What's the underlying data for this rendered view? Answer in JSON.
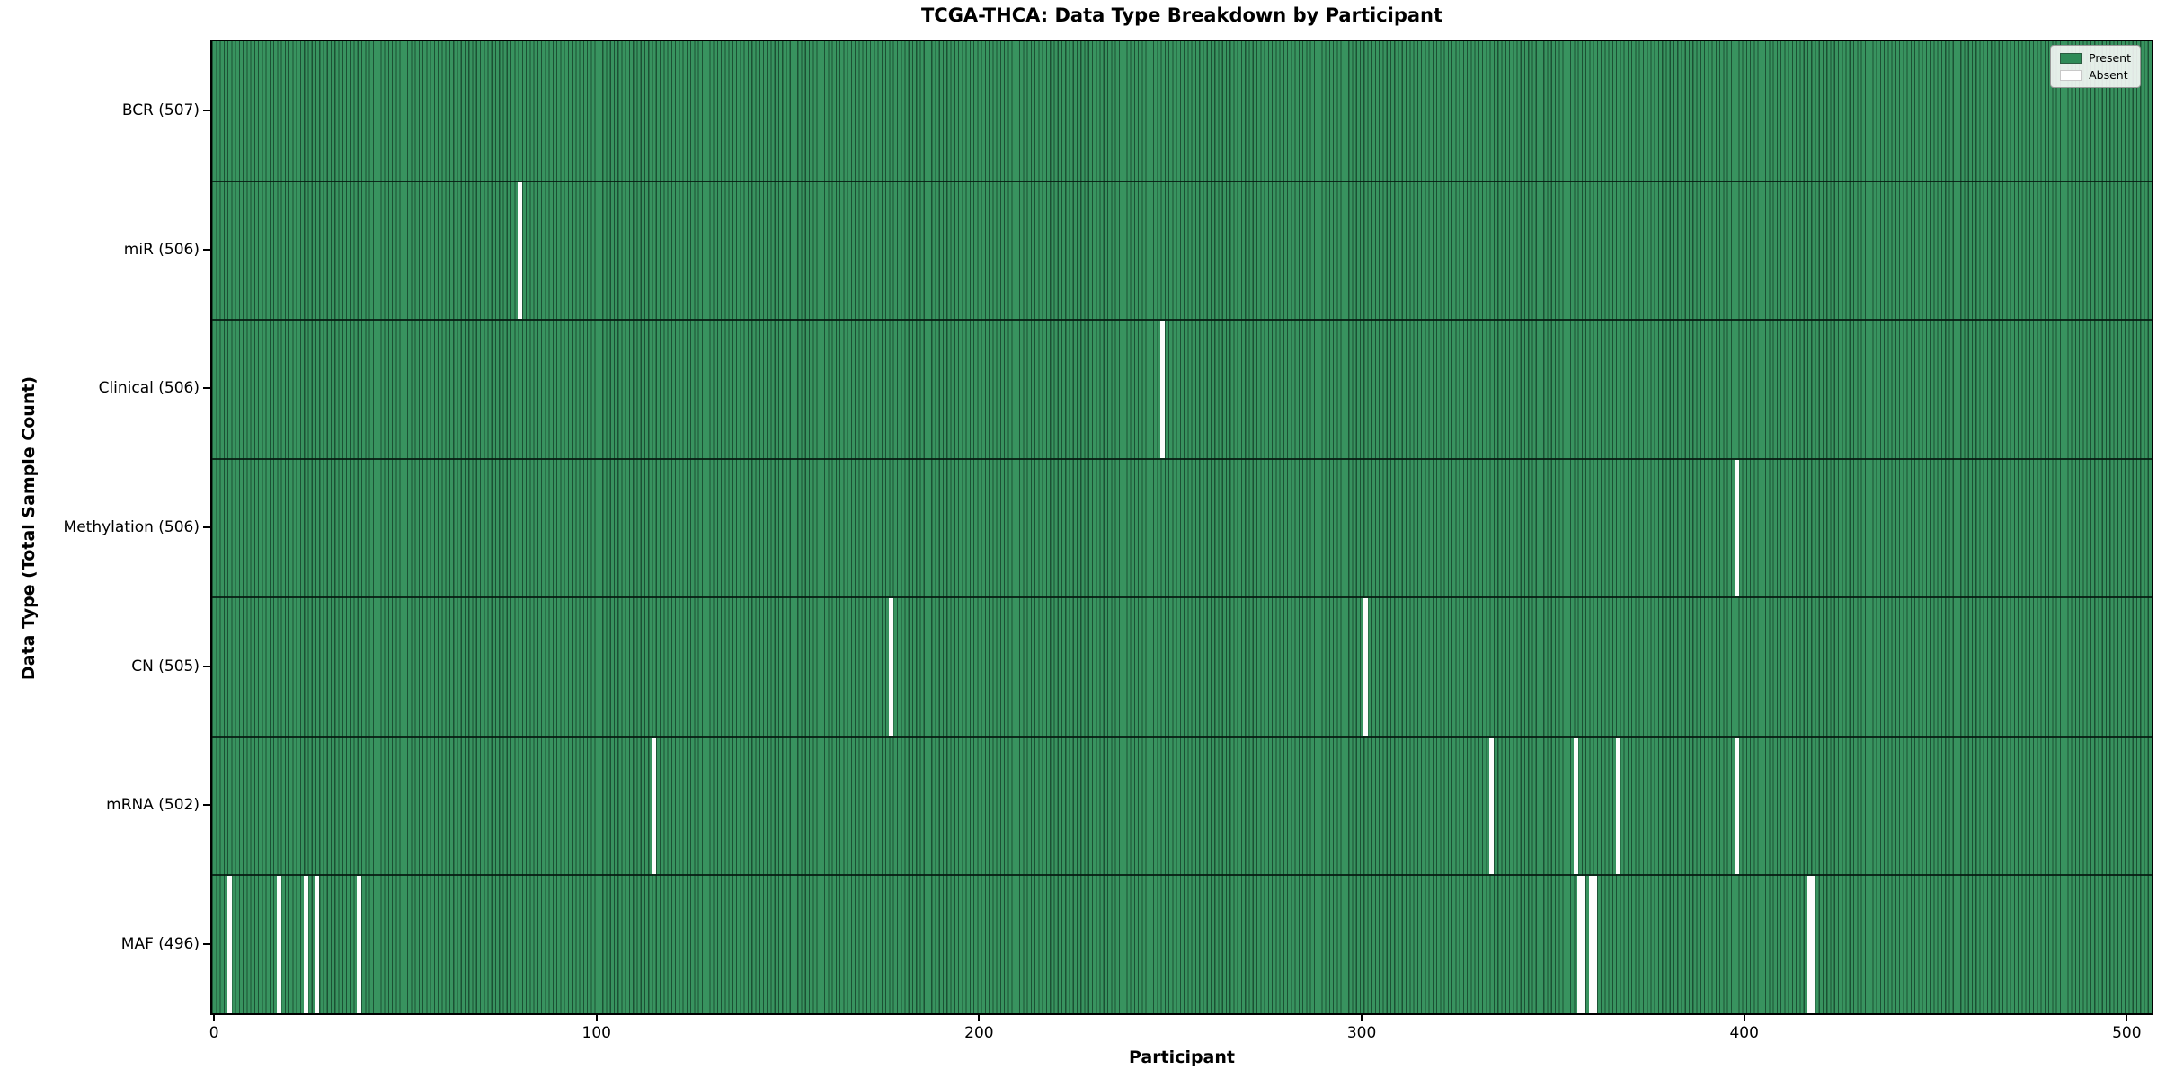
{
  "title": "TCGA-THCA: Data Type Breakdown by Participant",
  "chart_data": {
    "type": "heatmap",
    "title": "TCGA-THCA: Data Type Breakdown by Participant",
    "xlabel": "Participant",
    "ylabel": "Data Type (Total Sample Count)",
    "x_ticks": [
      0,
      100,
      200,
      300,
      400,
      500
    ],
    "x_range": [
      0,
      507
    ],
    "n_participants": 507,
    "grid": false,
    "legend_position": "upper right",
    "legend": [
      {
        "label": "Present",
        "color": "#2e8b57"
      },
      {
        "label": "Absent",
        "color": "#ffffff"
      }
    ],
    "colors": {
      "present_fill": "#38935f",
      "cell_edge": "#0f3320",
      "absent_fill": "#ffffff",
      "row_separator": "#0a1f14"
    },
    "rows": [
      {
        "name": "BCR",
        "label": "BCR (507)",
        "total": 507,
        "absent_participants": []
      },
      {
        "name": "miR",
        "label": "miR (506)",
        "total": 506,
        "absent_participants": [
          80
        ]
      },
      {
        "name": "Clinical",
        "label": "Clinical (506)",
        "total": 506,
        "absent_participants": [
          248
        ]
      },
      {
        "name": "Methylation",
        "label": "Methylation (506)",
        "total": 506,
        "absent_participants": [
          398
        ]
      },
      {
        "name": "CN",
        "label": "CN (505)",
        "total": 505,
        "absent_participants": [
          177,
          301
        ]
      },
      {
        "name": "mRNA",
        "label": "mRNA (502)",
        "total": 502,
        "absent_participants": [
          115,
          334,
          356,
          367,
          398
        ]
      },
      {
        "name": "MAF",
        "label": "MAF (496)",
        "total": 496,
        "absent_participants": [
          4,
          17,
          24,
          27,
          38,
          357,
          358,
          360,
          361,
          417,
          418
        ]
      }
    ]
  }
}
